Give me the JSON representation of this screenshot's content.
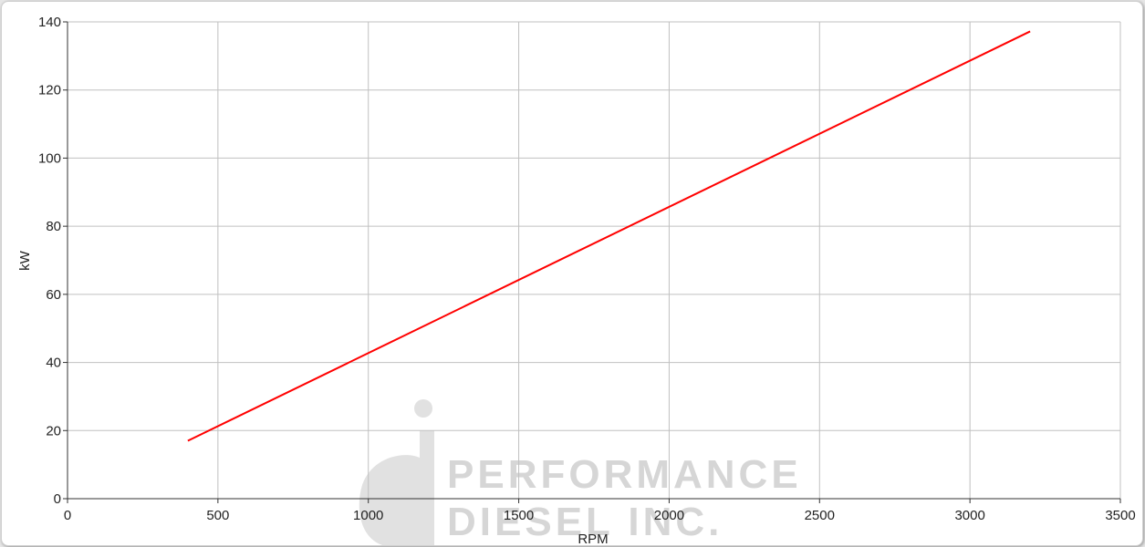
{
  "chart_data": {
    "type": "line",
    "title": "",
    "xlabel": "RPM",
    "ylabel": "kW",
    "xlim": [
      0,
      3500
    ],
    "ylim": [
      0,
      140
    ],
    "xticks": [
      0,
      500,
      1000,
      1500,
      2000,
      2500,
      3000,
      3500
    ],
    "yticks": [
      0,
      20,
      40,
      60,
      80,
      100,
      120,
      140
    ],
    "grid": true,
    "legend": "none",
    "series": [
      {
        "color": "#ff0000",
        "x": [
          400,
          3200
        ],
        "y": [
          17,
          137.2
        ]
      }
    ]
  },
  "watermark": {
    "line1": "PERFORMANCE",
    "line2": "DIESEL INC."
  }
}
